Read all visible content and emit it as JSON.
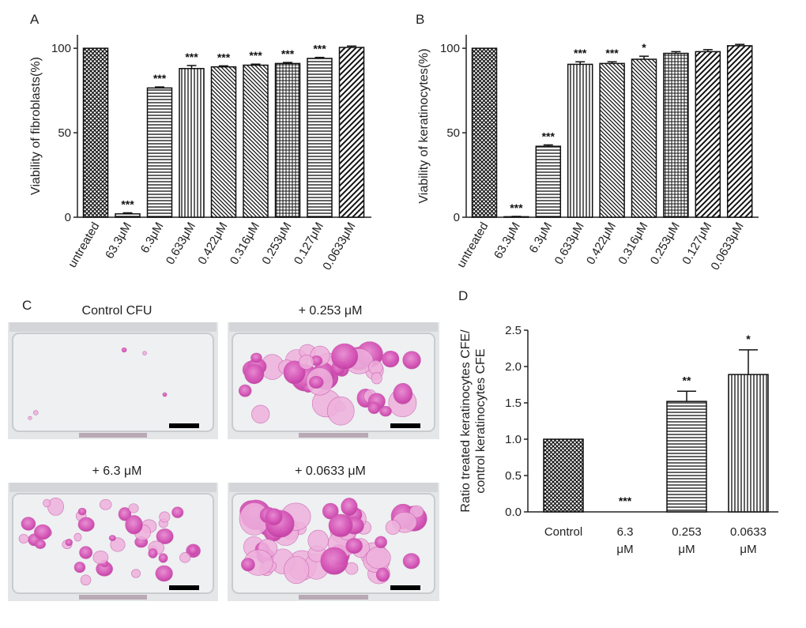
{
  "panels": {
    "A": "A",
    "B": "B",
    "C": "C",
    "D": "D"
  },
  "chart_data": [
    {
      "id": "A",
      "type": "bar",
      "ylabel": "Viability of fibroblasts(%)",
      "ylim": [
        0,
        108
      ],
      "yticks": [
        0,
        50,
        100
      ],
      "categories": [
        "untreated",
        "63.3μM",
        "6.3μM",
        "0.633μM",
        "0.422μM",
        "0.316μM",
        "0.253μM",
        "0.127μM",
        "0.0633μM"
      ],
      "values": [
        100,
        2,
        76.5,
        88,
        89,
        90,
        91,
        94,
        100.5
      ],
      "errors": [
        0,
        0.6,
        0.6,
        1.8,
        0.6,
        0.6,
        0.6,
        0.6,
        0.8
      ],
      "significance": [
        "",
        "***",
        "***",
        "***",
        "***",
        "***",
        "***",
        "***",
        ""
      ],
      "patterns": [
        "cross",
        "hstripe",
        "hstripe",
        "vstripe",
        "diagdown",
        "diagdown",
        "grid",
        "hstripe",
        "diagup"
      ]
    },
    {
      "id": "B",
      "type": "bar",
      "ylabel": "Viability of keratinocytes(%)",
      "ylim": [
        0,
        108
      ],
      "yticks": [
        0,
        50,
        100
      ],
      "categories": [
        "untreated",
        "63.3μM",
        "6.3μM",
        "0.633μM",
        "0.422μM",
        "0.316μM",
        "0.253μM",
        "0.127μM",
        "0.0633μM"
      ],
      "values": [
        100,
        0.3,
        42,
        90.5,
        91,
        93.5,
        97,
        98,
        101.5
      ],
      "errors": [
        0,
        0.2,
        0.8,
        1.5,
        1,
        1.8,
        1,
        1.2,
        0.8
      ],
      "significance": [
        "",
        "***",
        "***",
        "***",
        "***",
        "*",
        "",
        "",
        ""
      ],
      "patterns": [
        "cross",
        "hstripe",
        "hstripe",
        "vstripe",
        "diagdown",
        "diagdown",
        "grid",
        "diagup",
        "diagup"
      ]
    },
    {
      "id": "D",
      "type": "bar",
      "ylabel_lines": [
        "Ratio treated keratinocytes CFE/",
        "control keratinocytes CFE"
      ],
      "ylim": [
        0,
        2.5
      ],
      "yticks": [
        "0.0",
        "0.5",
        "1.0",
        "1.5",
        "2.0",
        "2.5"
      ],
      "categories": [
        [
          "Control"
        ],
        [
          "6.3",
          "μM"
        ],
        [
          "0.253",
          "μM"
        ],
        [
          "0.0633",
          "μM"
        ]
      ],
      "values": [
        1.0,
        0,
        1.52,
        1.89
      ],
      "errors": [
        0,
        0,
        0.14,
        0.34
      ],
      "significance": [
        "",
        "***",
        "**",
        "*"
      ],
      "patterns": [
        "cross",
        "none",
        "hstripe",
        "vstripe"
      ]
    }
  ],
  "photos": {
    "captions": [
      "Control CFU",
      "+ 0.253  μM",
      "+ 6.3  μM",
      "+ 0.0633  μM"
    ]
  }
}
